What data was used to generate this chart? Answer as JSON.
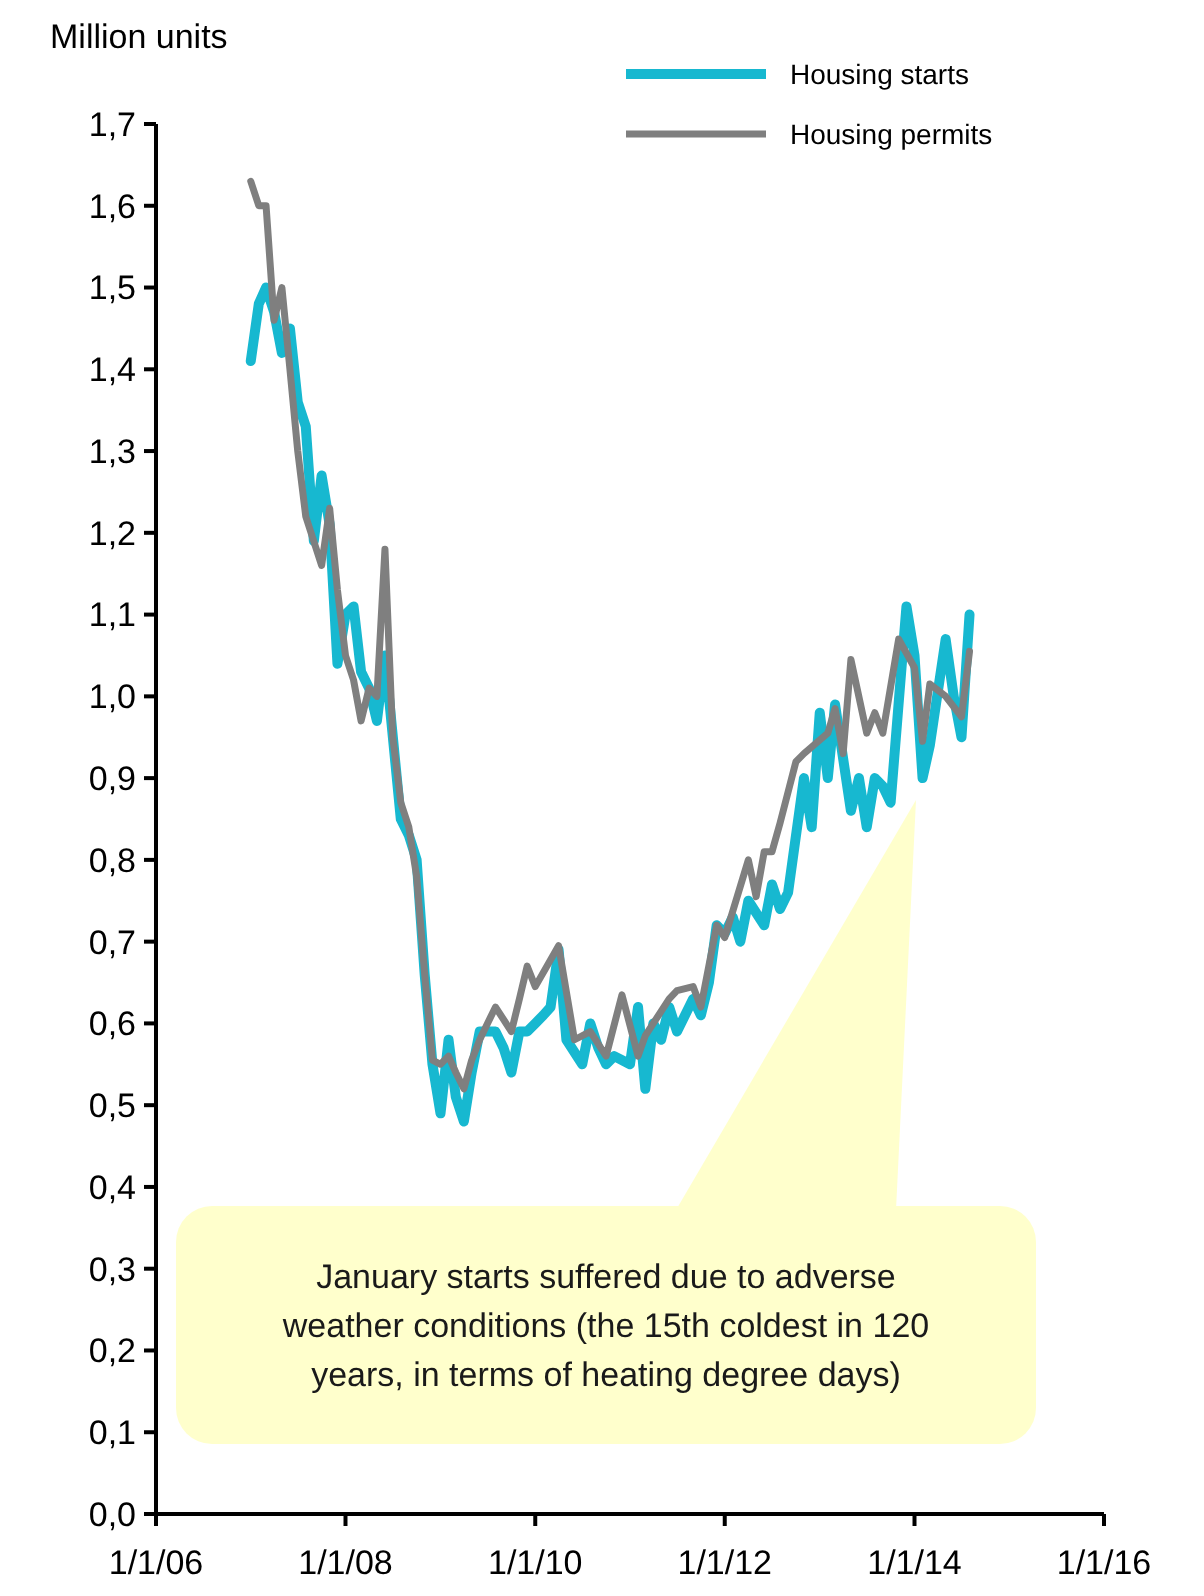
{
  "chart_data": {
    "type": "line",
    "ylabel": "Million units",
    "xlim": [
      "2006-01-01",
      "2016-01-01"
    ],
    "xticks": [
      {
        "value": "2006-01-01",
        "label": "1/1/06"
      },
      {
        "value": "2008-01-01",
        "label": "1/1/08"
      },
      {
        "value": "2010-01-01",
        "label": "1/1/10"
      },
      {
        "value": "2012-01-01",
        "label": "1/1/12"
      },
      {
        "value": "2014-01-01",
        "label": "1/1/14"
      },
      {
        "value": "2016-01-01",
        "label": "1/1/16"
      }
    ],
    "ylim": [
      0,
      1.7
    ],
    "yticks": [
      {
        "value": 0,
        "label": "0,0"
      },
      {
        "value": 0.1,
        "label": "0,1"
      },
      {
        "value": 0.2,
        "label": "0,2"
      },
      {
        "value": 0.3,
        "label": "0,3"
      },
      {
        "value": 0.4,
        "label": "0,4"
      },
      {
        "value": 0.5,
        "label": "0,5"
      },
      {
        "value": 0.6,
        "label": "0,6"
      },
      {
        "value": 0.7,
        "label": "0,7"
      },
      {
        "value": 0.8,
        "label": "0,8"
      },
      {
        "value": 0.9,
        "label": "0,9"
      },
      {
        "value": 1.0,
        "label": "1,0"
      },
      {
        "value": 1.1,
        "label": "1,1"
      },
      {
        "value": 1.2,
        "label": "1,2"
      },
      {
        "value": 1.3,
        "label": "1,3"
      },
      {
        "value": 1.4,
        "label": "1,4"
      },
      {
        "value": 1.5,
        "label": "1,5"
      },
      {
        "value": 1.6,
        "label": "1,6"
      },
      {
        "value": 1.7,
        "label": "1,7"
      }
    ],
    "grid": false,
    "legend": "top right",
    "marker": "none",
    "line_style": "solid",
    "series": [
      {
        "name": "Housing starts",
        "color": "#17b8d0",
        "x": [
          "2007-01",
          "2007-02",
          "2007-03",
          "2007-04",
          "2007-05",
          "2007-06",
          "2007-07",
          "2007-08",
          "2007-09",
          "2007-10",
          "2007-11",
          "2007-12",
          "2008-01",
          "2008-02",
          "2008-03",
          "2008-04",
          "2008-05",
          "2008-06",
          "2008-08",
          "2008-09",
          "2008-10",
          "2008-11",
          "2008-12",
          "2009-01",
          "2009-02",
          "2009-03",
          "2009-04",
          "2009-05",
          "2009-06",
          "2009-07",
          "2009-08",
          "2009-09",
          "2009-10",
          "2009-11",
          "2009-12",
          "2010-01",
          "2010-02",
          "2010-03",
          "2010-04",
          "2010-05",
          "2010-07",
          "2010-08",
          "2010-09",
          "2010-10",
          "2010-11",
          "2011-01",
          "2011-02",
          "2011-03",
          "2011-04",
          "2011-05",
          "2011-06",
          "2011-07",
          "2011-09",
          "2011-10",
          "2011-11",
          "2011-12",
          "2012-01",
          "2012-02",
          "2012-03",
          "2012-04",
          "2012-06",
          "2012-07",
          "2012-08",
          "2012-09",
          "2012-11",
          "2012-12",
          "2013-01",
          "2013-02",
          "2013-03",
          "2013-05",
          "2013-06",
          "2013-07",
          "2013-08",
          "2013-09",
          "2013-10",
          "2013-12",
          "2014-01",
          "2014-02",
          "2014-03",
          "2014-05",
          "2014-06",
          "2014-07",
          "2014-08"
        ],
        "values": [
          1.41,
          1.48,
          1.5,
          1.47,
          1.42,
          1.45,
          1.36,
          1.33,
          1.19,
          1.27,
          1.21,
          1.04,
          1.1,
          1.11,
          1.03,
          1.01,
          0.97,
          1.05,
          0.85,
          0.83,
          0.8,
          0.66,
          0.55,
          0.49,
          0.58,
          0.51,
          0.48,
          0.54,
          0.59,
          0.59,
          0.59,
          0.57,
          0.54,
          0.59,
          0.59,
          0.6,
          0.61,
          0.62,
          0.69,
          0.58,
          0.55,
          0.6,
          0.57,
          0.55,
          0.56,
          0.55,
          0.62,
          0.52,
          0.6,
          0.58,
          0.62,
          0.59,
          0.63,
          0.61,
          0.65,
          0.72,
          0.71,
          0.73,
          0.7,
          0.75,
          0.72,
          0.77,
          0.74,
          0.76,
          0.9,
          0.84,
          0.98,
          0.9,
          0.99,
          0.86,
          0.9,
          0.84,
          0.9,
          0.89,
          0.87,
          1.11,
          1.05,
          0.9,
          0.94,
          1.07,
          1.0,
          0.95,
          1.1
        ]
      },
      {
        "name": "Housing permits",
        "color": "#7f7f7f",
        "x": [
          "2007-01",
          "2007-02",
          "2007-03",
          "2007-04",
          "2007-05",
          "2007-06",
          "2007-07",
          "2007-08",
          "2007-10",
          "2007-11",
          "2007-12",
          "2008-01",
          "2008-02",
          "2008-03",
          "2008-04",
          "2008-05",
          "2008-06",
          "2008-07",
          "2008-08",
          "2008-09",
          "2008-10",
          "2008-11",
          "2008-12",
          "2009-01",
          "2009-02",
          "2009-03",
          "2009-04",
          "2009-05",
          "2009-06",
          "2009-07",
          "2009-08",
          "2009-10",
          "2009-11",
          "2009-12",
          "2010-01",
          "2010-04",
          "2010-06",
          "2010-08",
          "2010-10",
          "2010-12",
          "2011-02",
          "2011-03",
          "2011-06",
          "2011-07",
          "2011-09",
          "2011-10",
          "2011-12",
          "2012-01",
          "2012-04",
          "2012-05",
          "2012-06",
          "2012-07",
          "2012-08",
          "2012-10",
          "2012-11",
          "2013-02",
          "2013-03",
          "2013-04",
          "2013-05",
          "2013-07",
          "2013-08",
          "2013-09",
          "2013-11",
          "2014-01",
          "2014-02",
          "2014-03",
          "2014-05",
          "2014-07",
          "2014-08"
        ],
        "values": [
          1.63,
          1.6,
          1.6,
          1.46,
          1.5,
          1.4,
          1.3,
          1.22,
          1.16,
          1.23,
          1.13,
          1.05,
          1.02,
          0.97,
          1.01,
          1.0,
          1.18,
          0.95,
          0.87,
          0.84,
          0.78,
          0.66,
          0.555,
          0.55,
          0.56,
          0.54,
          0.52,
          0.555,
          0.58,
          0.6,
          0.62,
          0.59,
          0.63,
          0.67,
          0.645,
          0.695,
          0.58,
          0.59,
          0.56,
          0.635,
          0.56,
          0.585,
          0.63,
          0.64,
          0.645,
          0.62,
          0.72,
          0.705,
          0.8,
          0.755,
          0.81,
          0.81,
          0.845,
          0.92,
          0.93,
          0.955,
          0.985,
          0.93,
          1.045,
          0.955,
          0.98,
          0.955,
          1.07,
          1.035,
          0.945,
          1.015,
          1.0,
          0.975,
          1.055
        ]
      }
    ],
    "annotations": [
      "January starts suffered due to adverse weather conditions (the 15th coldest in 120 years, in terms of heating degree days)"
    ]
  }
}
